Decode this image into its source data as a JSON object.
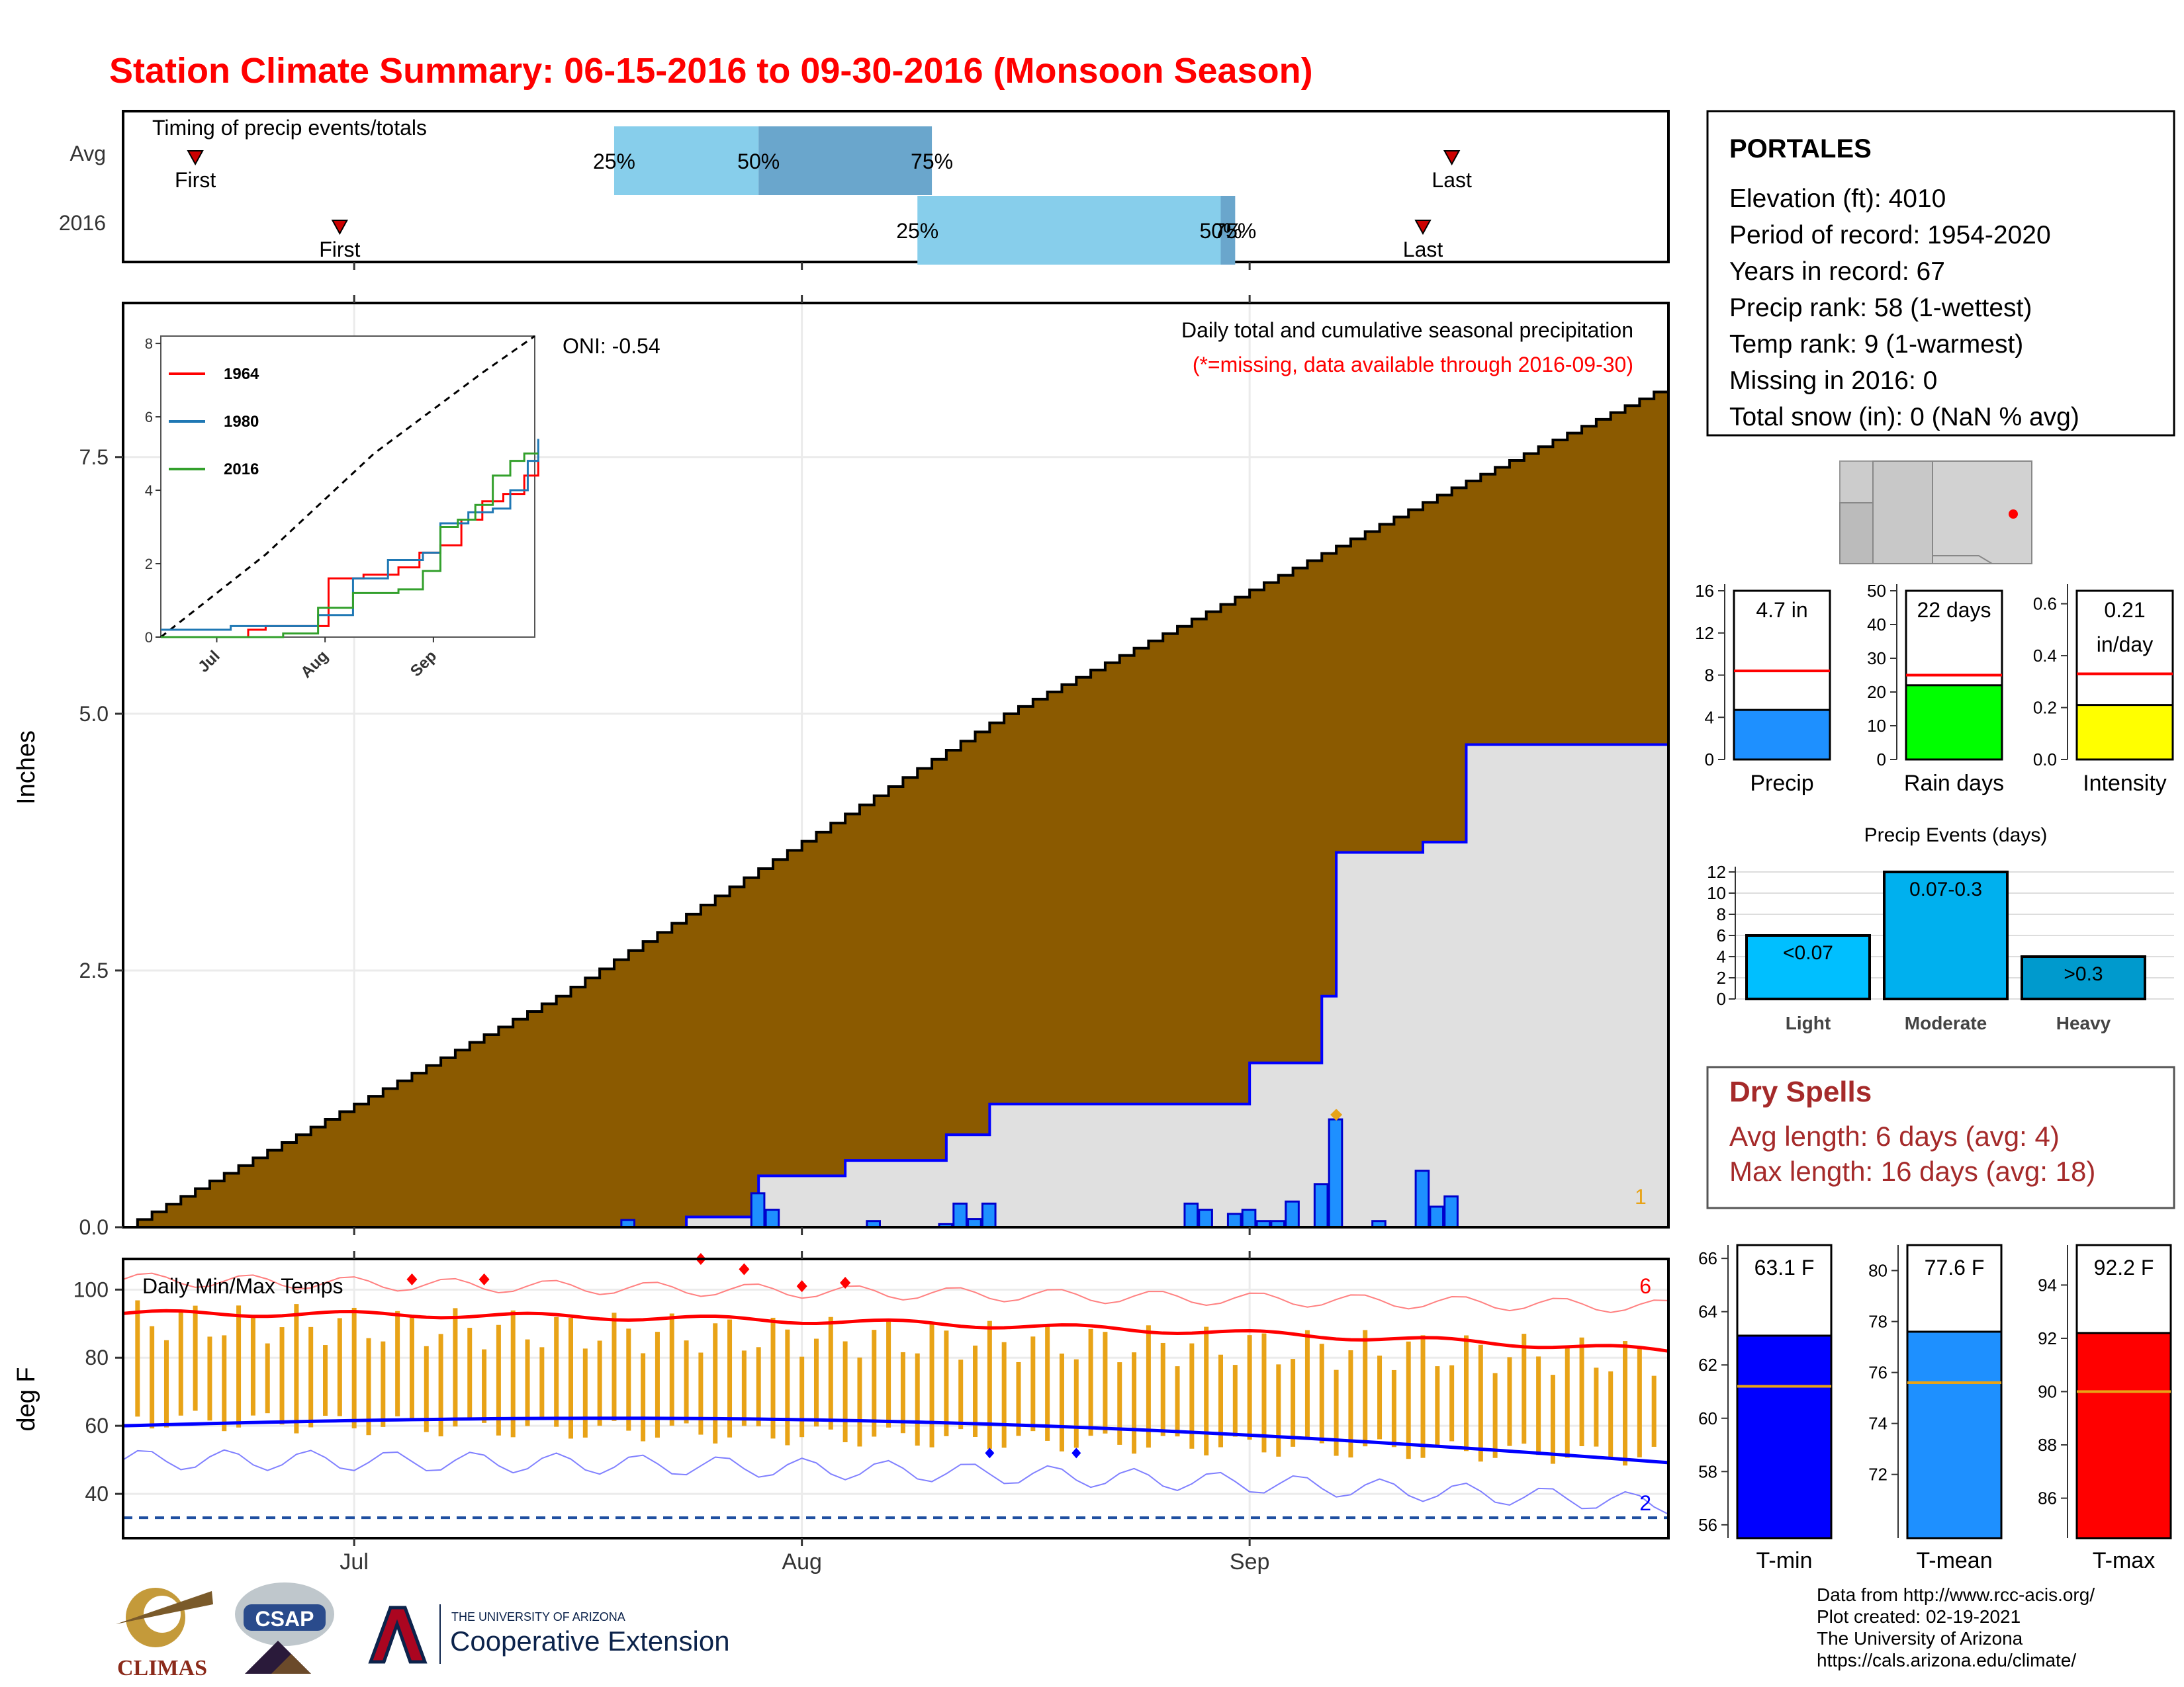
{
  "title": "Station Climate Summary: 06-15-2016 to 09-30-2016 (Monsoon Season)",
  "colors": {
    "title": "#ff0000",
    "accumFill": "#8b5a00",
    "seasonFill": "#e0e0e0",
    "bars": "#1e90ff",
    "maxLine": "#ff0000",
    "minLine": "#0000ff",
    "tempBar": "#e8a317",
    "precipBar": "#1e90ff",
    "raindaysBar": "#00ff00",
    "intensityBar": "#ffff00",
    "eventBars": [
      "#00bfff",
      "#00b0ee",
      "#009acd"
    ],
    "drySpell": "#a52a2a"
  },
  "timing": {
    "label": "Timing of precip events/totals",
    "rows": [
      "Avg",
      "2016"
    ],
    "avg": {
      "first": "2016-06-20",
      "p25": "2016-07-19",
      "p50": "2016-07-29",
      "p75": "2016-08-10",
      "last": "2016-09-15"
    },
    "y2016": {
      "first": "2016-06-30",
      "p25": "2016-08-09",
      "p50": "2016-08-30",
      "p75": "2016-08-31",
      "last": "2016-09-13"
    },
    "p25_label": "25%",
    "p50_label": "50%",
    "p75_label": "75%",
    "first_label": "First",
    "last_label": "Last"
  },
  "station": {
    "name": "PORTALES",
    "lines": [
      "Elevation (ft): 4010",
      "Period of record: 1954-2020",
      "Years in record: 67",
      "Precip rank: 58 (1-wettest)",
      "Temp rank: 9 (1-warmest)",
      "Missing in 2016: 0",
      "Total snow (in): 0 (NaN % avg)"
    ]
  },
  "main": {
    "ylabel": "Inches",
    "annot_title": "Daily total and cumulative seasonal precipitation",
    "annot_missing": "(*=missing, data available through 2016-09-30)",
    "oni": "ONI: -0.54",
    "corner_number": "1",
    "months": [
      "Jul",
      "Aug",
      "Sep"
    ]
  },
  "inset": {
    "series_names": [
      "1964",
      "1980",
      "2016"
    ],
    "series_colors": [
      "#ff0000",
      "#1f78b4",
      "#33a02c"
    ],
    "months": [
      "Jul",
      "Aug",
      "Sep"
    ]
  },
  "temps": {
    "label": "Daily Min/Max Temps",
    "ylabel": "deg F",
    "max_count": "6",
    "min_count": "2"
  },
  "mini_bars": [
    {
      "label": "Precip",
      "value_text": "4.7 in",
      "value": 4.7,
      "avg": 8.4,
      "ylim": [
        0,
        16
      ],
      "ticks": [
        0,
        4,
        8,
        12,
        16
      ]
    },
    {
      "label": "Rain days",
      "value_text": "22 days",
      "value": 22,
      "avg": 25,
      "ylim": [
        0,
        50
      ],
      "ticks": [
        0,
        10,
        20,
        30,
        40,
        50
      ]
    },
    {
      "label": "Intensity",
      "value_text": "0.21",
      "value_text2": "in/day",
      "value": 0.21,
      "avg": 0.33,
      "ylim": [
        0,
        0.65
      ],
      "ticks": [
        "0.0",
        "0.2",
        "0.4",
        "0.6"
      ]
    }
  ],
  "events": {
    "title": "Precip Events (days)",
    "categories": [
      "Light",
      "Moderate",
      "Heavy"
    ],
    "bar_labels": [
      "<0.07",
      "0.07-0.3",
      ">0.3"
    ],
    "values": [
      6,
      12,
      4
    ],
    "ticks": [
      0,
      2,
      4,
      6,
      8,
      10,
      12
    ]
  },
  "dry": {
    "title": "Dry Spells",
    "avg": "Avg length: 6 days (avg: 4)",
    "max": "Max length: 16 days (avg: 18)"
  },
  "temp_bars": [
    {
      "label": "T-min",
      "value_text": "63.1 F",
      "value": 63.1,
      "avg": 61.2,
      "ylim": [
        55.5,
        66.5
      ],
      "ticks": [
        56,
        58,
        60,
        62,
        64,
        66
      ]
    },
    {
      "label": "T-mean",
      "value_text": "77.6 F",
      "value": 77.6,
      "avg": 75.6,
      "ylim": [
        69.5,
        81
      ],
      "ticks": [
        72,
        74,
        76,
        78,
        80
      ]
    },
    {
      "label": "T-max",
      "value_text": "92.2 F",
      "value": 92.2,
      "avg": 90.0,
      "ylim": [
        84.5,
        95.5
      ],
      "ticks": [
        86,
        88,
        90,
        92,
        94
      ]
    }
  ],
  "credits": [
    "Data from http://www.rcc-acis.org/",
    "Plot created: 02-19-2021",
    "The University of Arizona",
    "https://cals.arizona.edu/climate/"
  ],
  "logos": {
    "climas": "CLIMAS",
    "csap": "CSAP",
    "ua_small": "THE UNIVERSITY OF ARIZONA",
    "ua_big": "Cooperative Extension"
  },
  "chart_data": {
    "type": "area",
    "title": "Daily total and cumulative seasonal precipitation",
    "ylabel": "Inches",
    "x_start": "2016-06-15",
    "x_end": "2016-09-30",
    "ylim": [
      0,
      9
    ],
    "yticks": [
      0.0,
      2.5,
      5.0,
      7.5
    ],
    "series": [
      {
        "name": "avg cumulative",
        "type": "step-area",
        "x": [
          "2016-06-15",
          "2016-07-15",
          "2016-08-15",
          "2016-09-15",
          "2016-09-30"
        ],
        "values": [
          0.0,
          2.25,
          5.0,
          7.2,
          8.2
        ]
      },
      {
        "name": "2016 cumulative",
        "type": "step",
        "x": [
          "2016-06-15",
          "2016-07-24",
          "2016-07-29",
          "2016-08-04",
          "2016-08-11",
          "2016-08-14",
          "2016-08-18",
          "2016-09-01",
          "2016-09-06",
          "2016-09-07",
          "2016-09-13",
          "2016-09-16",
          "2016-09-30"
        ],
        "values": [
          0.0,
          0.1,
          0.5,
          0.65,
          0.9,
          1.2,
          1.2,
          1.6,
          2.25,
          3.65,
          3.75,
          4.7,
          4.7
        ]
      }
    ],
    "daily_precip": [
      {
        "date": "2016-07-20",
        "value": 0.07
      },
      {
        "date": "2016-07-29",
        "value": 0.33
      },
      {
        "date": "2016-07-30",
        "value": 0.17
      },
      {
        "date": "2016-08-06",
        "value": 0.06
      },
      {
        "date": "2016-08-11",
        "value": 0.03
      },
      {
        "date": "2016-08-12",
        "value": 0.23
      },
      {
        "date": "2016-08-13",
        "value": 0.08
      },
      {
        "date": "2016-08-14",
        "value": 0.23
      },
      {
        "date": "2016-08-28",
        "value": 0.23
      },
      {
        "date": "2016-08-29",
        "value": 0.17
      },
      {
        "date": "2016-08-31",
        "value": 0.13
      },
      {
        "date": "2016-09-01",
        "value": 0.17
      },
      {
        "date": "2016-09-02",
        "value": 0.06
      },
      {
        "date": "2016-09-03",
        "value": 0.06
      },
      {
        "date": "2016-09-04",
        "value": 0.25
      },
      {
        "date": "2016-09-06",
        "value": 0.42
      },
      {
        "date": "2016-09-07",
        "value": 1.05
      },
      {
        "date": "2016-09-10",
        "value": 0.06
      },
      {
        "date": "2016-09-13",
        "value": 0.55
      },
      {
        "date": "2016-09-14",
        "value": 0.2
      },
      {
        "date": "2016-09-15",
        "value": 0.3
      }
    ],
    "temps": {
      "ylim": [
        27,
        109
      ],
      "yticks": [
        40,
        60,
        80,
        100
      ],
      "avg_max_start": 93,
      "avg_max_end": 82,
      "avg_min_start": 60,
      "avg_min_end": 49,
      "record_min_line": 33
    }
  }
}
